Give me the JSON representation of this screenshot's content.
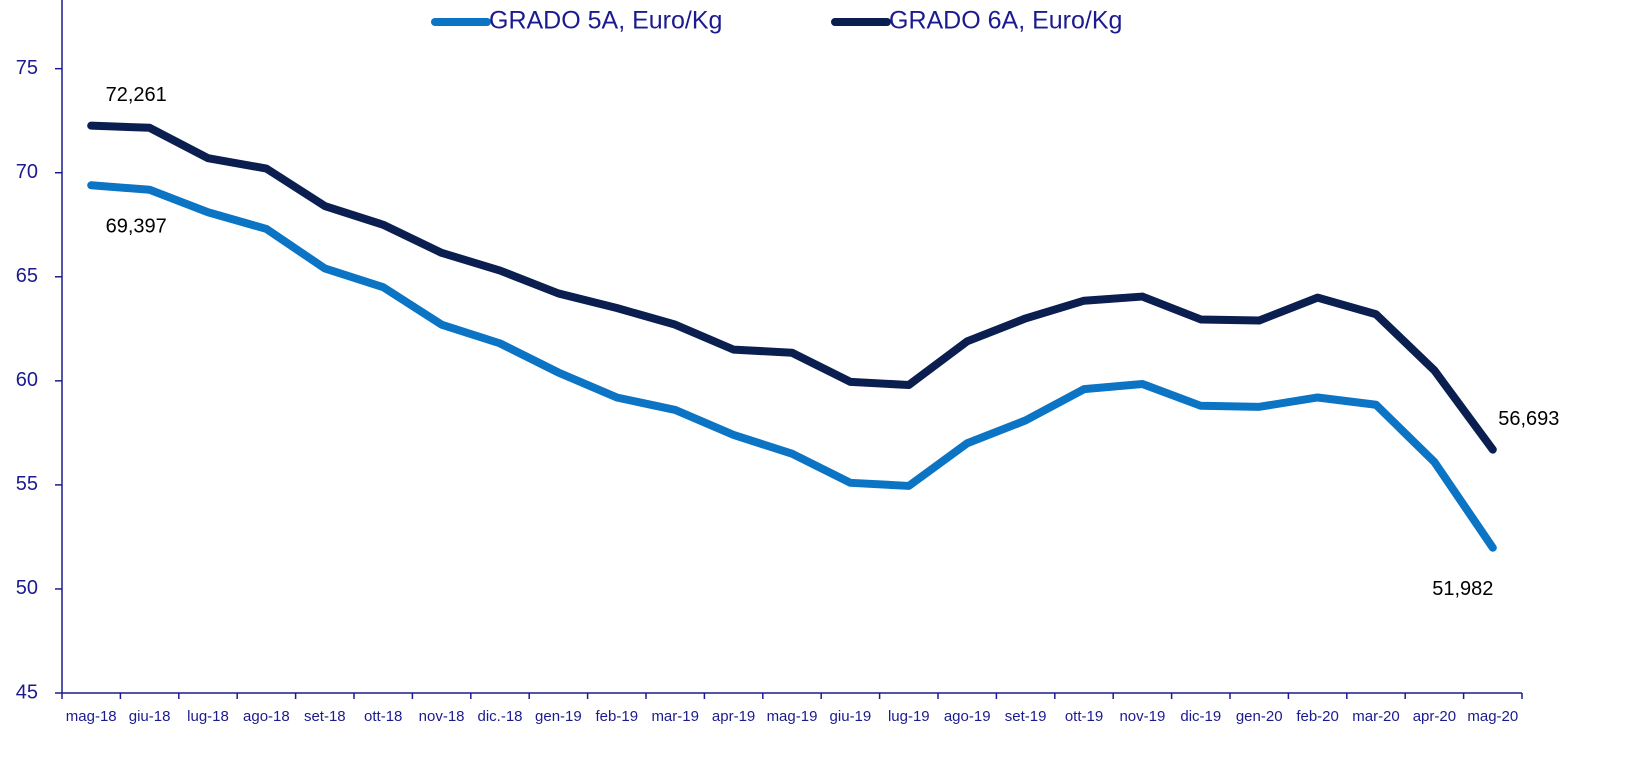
{
  "chart_data": {
    "type": "line",
    "categories": [
      "mag-18",
      "giu-18",
      "lug-18",
      "ago-18",
      "set-18",
      "ott-18",
      "nov-18",
      "dic.-18",
      "gen-19",
      "feb-19",
      "mar-19",
      "apr-19",
      "mag-19",
      "giu-19",
      "lug-19",
      "ago-19",
      "set-19",
      "ott-19",
      "nov-19",
      "dic-19",
      "gen-20",
      "feb-20",
      "mar-20",
      "apr-20",
      "mag-20"
    ],
    "series": [
      {
        "name": "GRADO 5A, Euro/Kg",
        "color": "#0b74c4",
        "values": [
          69.397,
          69.18,
          68.1,
          67.3,
          65.4,
          64.5,
          62.7,
          61.8,
          60.4,
          59.2,
          58.6,
          57.4,
          56.5,
          55.1,
          54.95,
          57.0,
          58.1,
          59.6,
          59.85,
          58.8,
          58.75,
          59.2,
          58.85,
          56.1,
          51.982
        ],
        "value_labels": [
          "69,397",
          null,
          null,
          null,
          null,
          null,
          null,
          null,
          null,
          null,
          null,
          null,
          null,
          null,
          null,
          null,
          null,
          null,
          null,
          null,
          null,
          null,
          null,
          null,
          "51,982"
        ]
      },
      {
        "name": "GRADO 6A, Euro/Kg",
        "color": "#0b1e50",
        "values": [
          72.261,
          72.16,
          70.7,
          70.2,
          68.4,
          67.5,
          66.15,
          65.3,
          64.2,
          63.5,
          62.7,
          61.5,
          61.35,
          59.95,
          59.8,
          61.9,
          63.0,
          63.85,
          64.05,
          62.95,
          62.9,
          64.0,
          63.2,
          60.5,
          56.693
        ],
        "value_labels": [
          "72,261",
          null,
          null,
          null,
          null,
          null,
          null,
          null,
          null,
          null,
          null,
          null,
          null,
          null,
          null,
          null,
          null,
          null,
          null,
          null,
          null,
          null,
          null,
          null,
          "56,693"
        ]
      }
    ],
    "ylim": [
      45,
      78.3
    ],
    "yticks": [
      45,
      50,
      55,
      60,
      65,
      70,
      75
    ],
    "legend": "top"
  }
}
